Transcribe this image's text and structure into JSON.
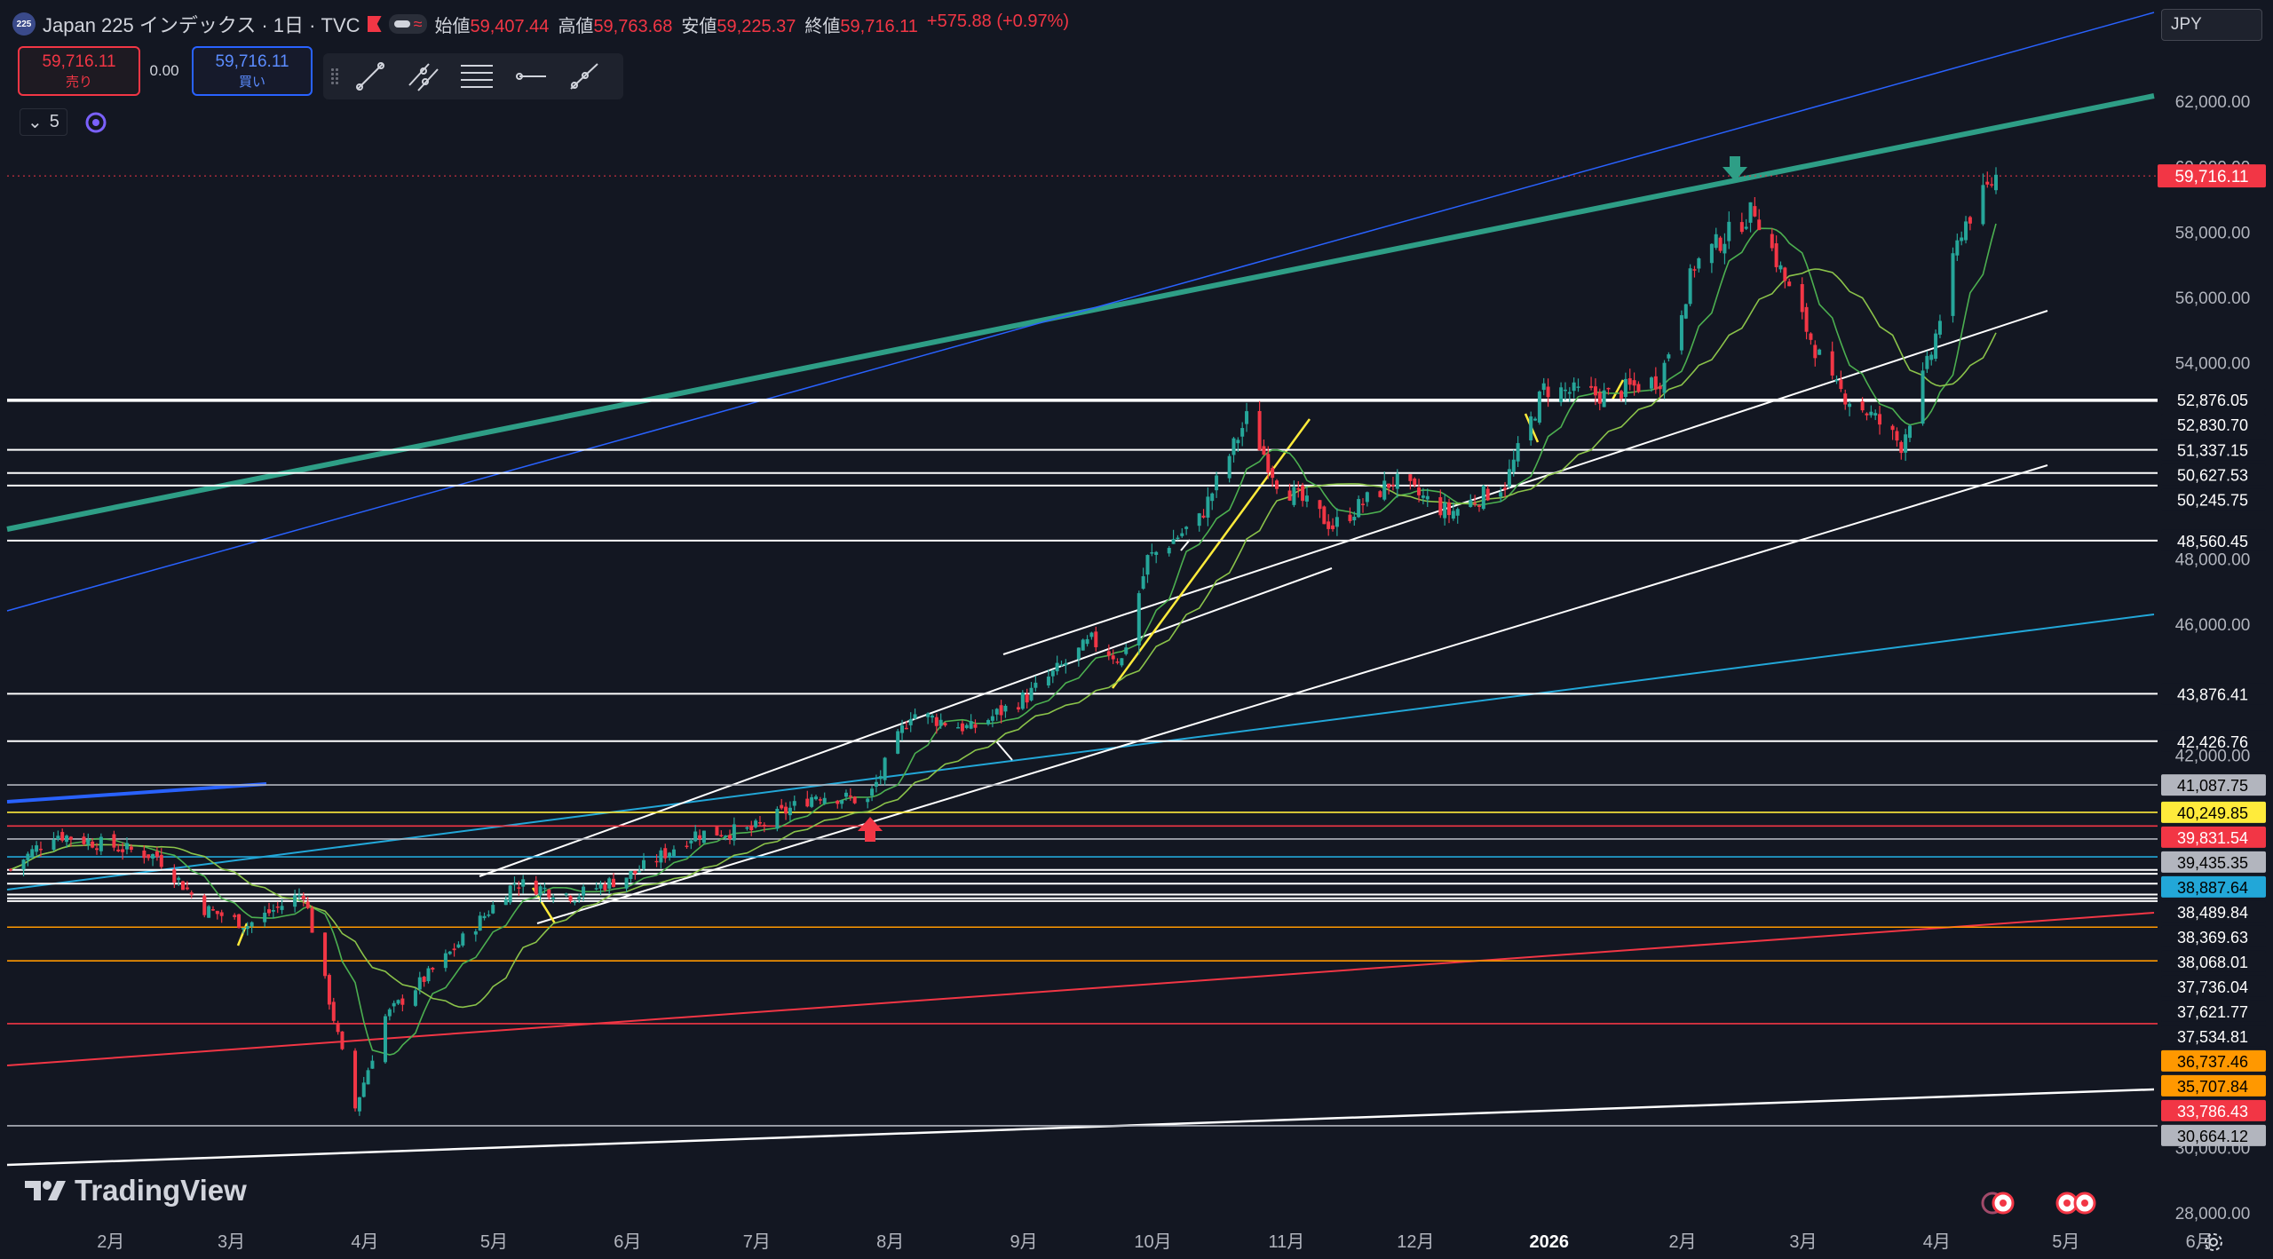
{
  "header": {
    "badge": "225",
    "title": "Japan 225 インデックス · 1日 · TVC",
    "open_label": "始値",
    "open": "59,407.44",
    "high_label": "高値",
    "high": "59,763.68",
    "low_label": "安値",
    "low": "59,225.37",
    "close_label": "終値",
    "close": "59,716.11",
    "change": "+575.88 (+0.97%)"
  },
  "trade": {
    "sell_price": "59,716.11",
    "sell_label": "売り",
    "spread": "0.00",
    "buy_price": "59,716.11",
    "buy_label": "買い"
  },
  "indicators_count": "5",
  "currency": "JPY",
  "branding": "TradingView",
  "tools": [
    "trend-line-icon",
    "parallel-channel-icon",
    "fib-retracement-icon",
    "horizontal-ray-icon",
    "ray-icon"
  ],
  "colors": {
    "background": "#131722",
    "up": "#26a69a",
    "down": "#f23645",
    "channel": "#2e9e86",
    "blue_line": "#2962ff",
    "cyan_line": "#22a7d8",
    "orange_line": "#ff9800",
    "red_line": "#f23645",
    "yellow_line": "#ffeb3b",
    "white_line": "#ffffff"
  },
  "chart_data": {
    "type": "candlestick",
    "symbol": "Japan 225",
    "interval": "1日",
    "yaxis_ticks": [
      "62,000.00",
      "60,000.00",
      "58,000.00",
      "56,000.00",
      "54,000.00",
      "48,000.00",
      "46,000.00",
      "42,000.00",
      "30,000.00",
      "28,000.00"
    ],
    "ylim": [
      26900,
      64300
    ],
    "xaxis_labels": [
      "2月",
      "3月",
      "4月",
      "5月",
      "6月",
      "7月",
      "8月",
      "9月",
      "10月",
      "11月",
      "12月",
      "2026",
      "2月",
      "3月",
      "4月",
      "5月",
      "6月"
    ],
    "xaxis_bold": [
      "2026"
    ],
    "last_price": {
      "label": "59,716.11",
      "value": 59716.11
    },
    "price_path": [
      {
        "x": "2025-01-17",
        "y": 38500
      },
      {
        "x": "2025-01-27",
        "y": 39600
      },
      {
        "x": "2025-02-10",
        "y": 39200
      },
      {
        "x": "2025-02-20",
        "y": 38900
      },
      {
        "x": "2025-03-03",
        "y": 37300
      },
      {
        "x": "2025-03-13",
        "y": 36800
      },
      {
        "x": "2025-03-26",
        "y": 37800
      },
      {
        "x": "2025-04-07",
        "y": 31200
      },
      {
        "x": "2025-04-14",
        "y": 34000
      },
      {
        "x": "2025-04-28",
        "y": 35800
      },
      {
        "x": "2025-05-14",
        "y": 38100
      },
      {
        "x": "2025-05-28",
        "y": 37700
      },
      {
        "x": "2025-06-11",
        "y": 38400
      },
      {
        "x": "2025-06-25",
        "y": 39600
      },
      {
        "x": "2025-07-08",
        "y": 39700
      },
      {
        "x": "2025-07-23",
        "y": 40800
      },
      {
        "x": "2025-08-04",
        "y": 40600
      },
      {
        "x": "2025-08-14",
        "y": 43300
      },
      {
        "x": "2025-08-28",
        "y": 42800
      },
      {
        "x": "2025-09-10",
        "y": 43800
      },
      {
        "x": "2025-09-25",
        "y": 45500
      },
      {
        "x": "2025-10-02",
        "y": 44900
      },
      {
        "x": "2025-10-08",
        "y": 48000
      },
      {
        "x": "2025-10-20",
        "y": 49200
      },
      {
        "x": "2025-10-31",
        "y": 52300
      },
      {
        "x": "2025-11-07",
        "y": 50400
      },
      {
        "x": "2025-11-20",
        "y": 49000
      },
      {
        "x": "2025-12-04",
        "y": 50400
      },
      {
        "x": "2025-12-17",
        "y": 49400
      },
      {
        "x": "2025-12-30",
        "y": 50300
      },
      {
        "x": "2026-01-08",
        "y": 53200
      },
      {
        "x": "2026-01-22",
        "y": 53000
      },
      {
        "x": "2026-02-04",
        "y": 53500
      },
      {
        "x": "2026-02-12",
        "y": 57000
      },
      {
        "x": "2026-02-26",
        "y": 58700
      },
      {
        "x": "2026-03-06",
        "y": 56200
      },
      {
        "x": "2026-03-16",
        "y": 53300
      },
      {
        "x": "2026-03-25",
        "y": 52400
      },
      {
        "x": "2026-04-01",
        "y": 51500
      },
      {
        "x": "2026-04-08",
        "y": 54300
      },
      {
        "x": "2026-04-15",
        "y": 58100
      },
      {
        "x": "2026-04-23",
        "y": 59716
      }
    ],
    "horizontal_levels": [
      {
        "value": 52876.05,
        "label": "52,876.05",
        "color": "#ffffff"
      },
      {
        "value": 52830.7,
        "label": "52,830.70",
        "color": "#ffffff"
      },
      {
        "value": 51337.15,
        "label": "51,337.15",
        "color": "#ffffff"
      },
      {
        "value": 50627.53,
        "label": "50,627.53",
        "color": "#ffffff"
      },
      {
        "value": 50245.75,
        "label": "50,245.75",
        "color": "#ffffff"
      },
      {
        "value": 48560.45,
        "label": "48,560.45",
        "color": "#ffffff"
      },
      {
        "value": 43876.41,
        "label": "43,876.41",
        "color": "#ffffff"
      },
      {
        "value": 42426.76,
        "label": "42,426.76",
        "color": "#ffffff"
      },
      {
        "value": 41087.75,
        "label": "41,087.75",
        "color": "#b2b5be"
      },
      {
        "value": 40249.85,
        "label": "40,249.85",
        "color": "#ffeb3b"
      },
      {
        "value": 39831.54,
        "label": "39,831.54",
        "color": "#f23645"
      },
      {
        "value": 39435.35,
        "label": "39,435.35",
        "color": "#b2b5be"
      },
      {
        "value": 38887.64,
        "label": "38,887.64",
        "color": "#22a7d8"
      },
      {
        "value": 38489.84,
        "label": "38,489.84",
        "color": "#ffffff"
      },
      {
        "value": 38369.63,
        "label": "38,369.63",
        "color": "#ffffff"
      },
      {
        "value": 38068.01,
        "label": "38,068.01",
        "color": "#ffffff"
      },
      {
        "value": 37736.04,
        "label": "37,736.04",
        "color": "#ffffff"
      },
      {
        "value": 37621.77,
        "label": "37,621.77",
        "color": "#ffffff"
      },
      {
        "value": 37534.81,
        "label": "37,534.81",
        "color": "#ffffff"
      },
      {
        "value": 36737.46,
        "label": "36,737.46",
        "color": "#ff9800"
      },
      {
        "value": 35707.84,
        "label": "35,707.84",
        "color": "#ff9800"
      },
      {
        "value": 33786.43,
        "label": "33,786.43",
        "color": "#f23645"
      },
      {
        "value": 30664.12,
        "label": "30,664.12",
        "color": "#b2b5be"
      }
    ]
  }
}
